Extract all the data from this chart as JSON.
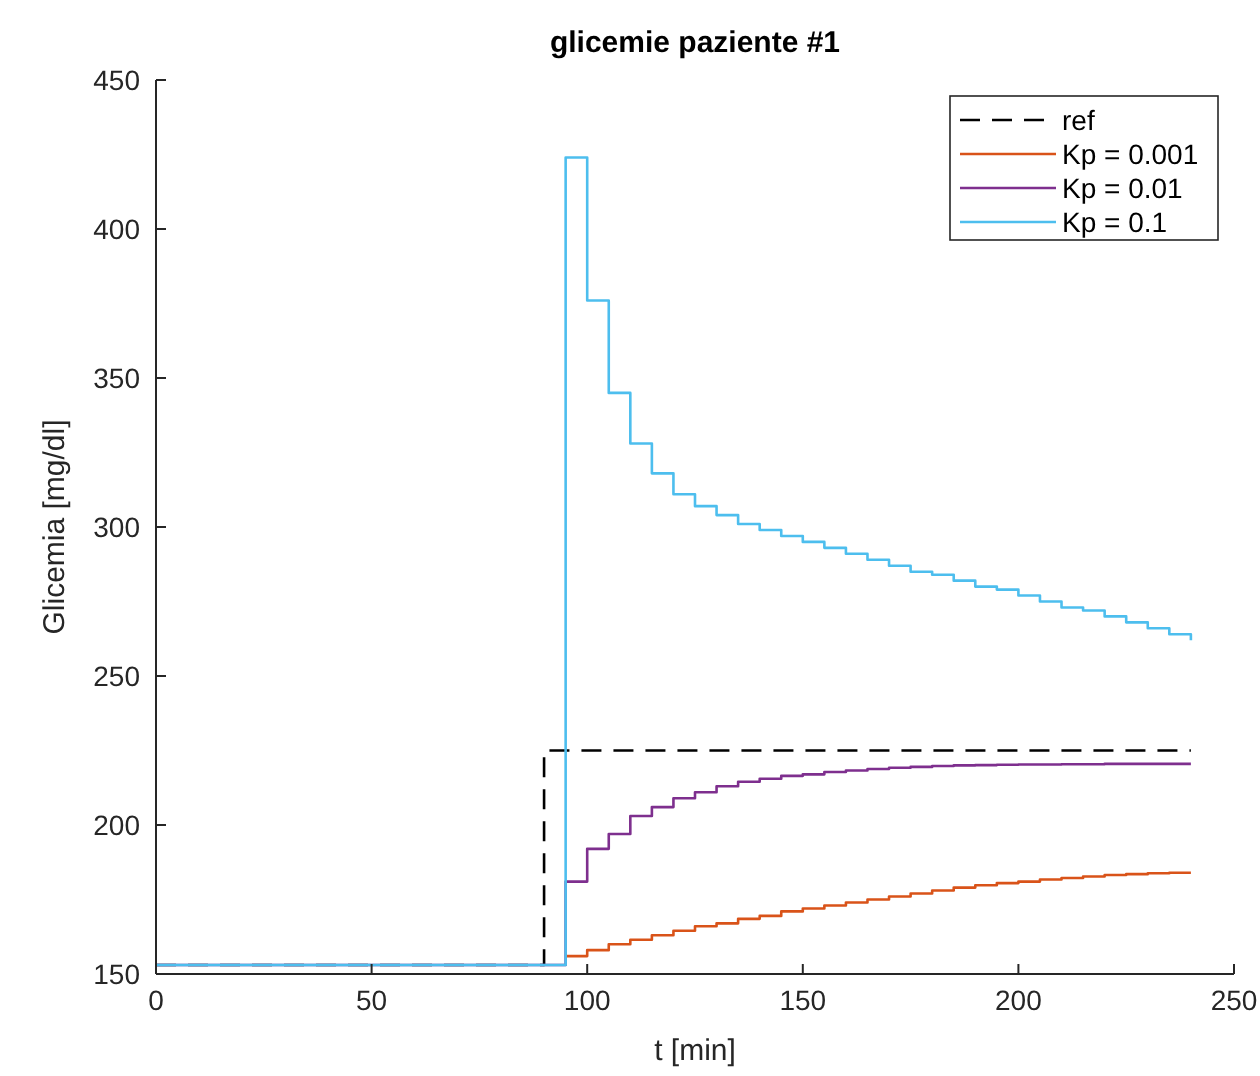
{
  "chart_data": {
    "type": "step",
    "title": "glicemie paziente #1",
    "xlabel": "t [min]",
    "ylabel": "Glicemia [mg/dl]",
    "xlim": [
      0,
      250
    ],
    "ylim": [
      150,
      450
    ],
    "xticks": [
      0,
      50,
      100,
      150,
      200,
      250
    ],
    "yticks": [
      150,
      200,
      250,
      300,
      350,
      400,
      450
    ],
    "grid": false,
    "legend": "top right",
    "series": [
      {
        "name": "ref",
        "color": "#000000",
        "line_style": "dashed",
        "x": [
          0,
          90,
          240
        ],
        "values": [
          153,
          225,
          225
        ]
      },
      {
        "name": "Kp = 0.001",
        "color": "#d95319",
        "x": [
          95,
          100,
          105,
          110,
          115,
          120,
          125,
          130,
          135,
          140,
          145,
          150,
          155,
          160,
          165,
          170,
          175,
          180,
          185,
          190,
          195,
          200,
          205,
          210,
          215,
          220,
          225,
          230,
          235,
          240
        ],
        "values": [
          156,
          158,
          160,
          161.5,
          163,
          164.5,
          166,
          167,
          168.5,
          169.5,
          171,
          172,
          173,
          174,
          175,
          176,
          177,
          178,
          179,
          179.8,
          180.5,
          181,
          181.7,
          182.2,
          182.7,
          183.2,
          183.5,
          183.8,
          184,
          184
        ]
      },
      {
        "name": "Kp = 0.01",
        "color": "#7e2f8e",
        "x": [
          0,
          95,
          100,
          105,
          110,
          115,
          120,
          125,
          130,
          135,
          140,
          145,
          150,
          155,
          160,
          165,
          170,
          175,
          180,
          185,
          190,
          195,
          200,
          205,
          210,
          215,
          220,
          225,
          230,
          235,
          240
        ],
        "values": [
          153,
          181,
          192,
          197,
          203,
          206,
          209,
          211,
          213,
          214.5,
          215.5,
          216.5,
          217,
          217.8,
          218.3,
          218.8,
          219.2,
          219.5,
          219.8,
          220,
          220.1,
          220.2,
          220.3,
          220.3,
          220.4,
          220.4,
          220.5,
          220.5,
          220.5,
          220.5,
          220.5
        ]
      },
      {
        "name": "Kp = 0.1",
        "color": "#4dbeee",
        "x": [
          0,
          95,
          100,
          105,
          110,
          115,
          120,
          125,
          130,
          135,
          140,
          145,
          150,
          155,
          160,
          165,
          170,
          175,
          180,
          185,
          190,
          195,
          200,
          205,
          210,
          215,
          220,
          225,
          230,
          235,
          240
        ],
        "values": [
          153,
          424,
          376,
          345,
          328,
          318,
          311,
          307,
          304,
          301,
          299,
          297,
          295,
          293,
          291,
          289,
          287,
          285,
          284,
          282,
          280,
          279,
          277,
          275,
          273,
          272,
          270,
          268,
          266,
          264,
          262
        ]
      }
    ]
  }
}
